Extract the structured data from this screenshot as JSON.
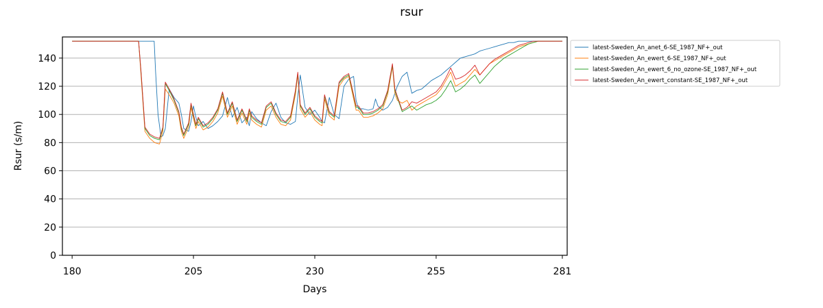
{
  "chart_data": {
    "type": "line",
    "title": "rsur",
    "xlabel": "Days",
    "ylabel": "Rsur (s/m)",
    "xlim": [
      178,
      282
    ],
    "ylim": [
      0,
      155
    ],
    "xticks": [
      180,
      205,
      230,
      255,
      281
    ],
    "yticks": [
      0,
      20,
      40,
      60,
      80,
      100,
      120,
      140
    ],
    "grid": "horizontal",
    "legend_position": "outside-right",
    "series": [
      {
        "name": "latest-Sweden_An_anet_6-SE_1987_NF+_out",
        "color": "#1f77b4",
        "x": [
          180,
          195,
          196.9,
          197.2,
          197.7,
          198.3,
          198.7,
          199.2,
          200,
          201,
          202,
          202.5,
          203,
          204,
          204.5,
          205,
          205.5,
          206,
          207,
          208,
          209,
          210,
          211,
          212,
          213,
          214,
          215,
          216,
          216.5,
          217,
          218,
          219,
          220,
          221,
          222,
          223,
          224,
          225,
          226,
          226.5,
          227,
          228,
          229,
          230,
          231,
          231.5,
          232,
          233,
          234,
          235,
          236,
          237,
          238,
          238.5,
          239,
          240,
          241,
          242,
          242.5,
          243,
          244,
          245,
          246,
          247,
          248,
          249,
          250,
          251,
          252,
          253,
          254,
          255,
          256,
          257,
          258,
          259,
          260,
          261,
          262,
          263,
          264,
          265,
          266,
          267,
          268,
          269,
          270,
          271,
          272,
          273,
          274,
          275,
          276,
          277,
          278,
          279,
          280,
          281
        ],
        "values": [
          152,
          152,
          152,
          130,
          100,
          84,
          85,
          90,
          118,
          112,
          108,
          100,
          90,
          88,
          95,
          106,
          98,
          92,
          95,
          90,
          92,
          95,
          99,
          112,
          98,
          105,
          94,
          98,
          92,
          102,
          97,
          94,
          92,
          102,
          108,
          98,
          94,
          93,
          95,
          113,
          128,
          105,
          100,
          103,
          98,
          95,
          94,
          112,
          100,
          97,
          120,
          125,
          127,
          110,
          104,
          104,
          103,
          104,
          111,
          106,
          103,
          105,
          110,
          120,
          127,
          130,
          115,
          117,
          118,
          121,
          124,
          126,
          128,
          131,
          134,
          137,
          140,
          141,
          142,
          143,
          145,
          146,
          147,
          148,
          149,
          150,
          151,
          151,
          152,
          152,
          152,
          152,
          152,
          152,
          152,
          152,
          152,
          152
        ]
      },
      {
        "name": "latest-Sweden_An_ewert_6-SE_1987_NF+_out",
        "color": "#ff7f0e",
        "x": [
          180,
          193.7,
          194.2,
          195,
          196,
          197,
          198,
          198.7,
          199.2,
          200,
          201,
          202,
          202.5,
          203,
          204,
          204.5,
          205,
          205.5,
          206,
          207,
          208,
          209,
          210,
          211,
          212,
          213,
          214,
          215,
          216,
          216.5,
          217,
          218,
          219,
          220,
          221,
          222,
          223,
          224,
          225,
          226,
          226.5,
          227,
          228,
          229,
          230,
          231,
          231.5,
          232,
          233,
          234,
          235,
          236,
          237,
          238,
          238.5,
          239,
          240,
          241,
          242,
          242.5,
          243,
          244,
          245,
          246,
          246.5,
          247,
          248,
          249,
          250,
          251,
          252,
          253,
          254,
          255,
          256,
          257,
          258,
          259,
          260,
          261,
          262,
          263,
          264,
          265,
          266,
          267,
          268,
          269,
          270,
          271,
          272,
          273,
          274,
          275,
          276,
          277,
          278,
          279,
          280,
          281
        ],
        "values": [
          152,
          152,
          128,
          88,
          83,
          80,
          79,
          88,
          118,
          114,
          108,
          99,
          88,
          83,
          91,
          105,
          97,
          90,
          95,
          89,
          91,
          95,
          101,
          113,
          98,
          106,
          93,
          101,
          93,
          101,
          96,
          93,
          91,
          103,
          106,
          98,
          93,
          92,
          96,
          114,
          128,
          104,
          98,
          102,
          96,
          93,
          92,
          111,
          99,
          96,
          120,
          125,
          127,
          111,
          103,
          103,
          98,
          98,
          99,
          100,
          101,
          104,
          114,
          134,
          115,
          110,
          108,
          110,
          103,
          106,
          108,
          110,
          112,
          114,
          118,
          124,
          130,
          120,
          122,
          124,
          128,
          132,
          128,
          132,
          136,
          138,
          140,
          142,
          144,
          146,
          148,
          149,
          150,
          151,
          152,
          152,
          152,
          152,
          152,
          152
        ]
      },
      {
        "name": "latest-Sweden_An_ewert_6_no_ozone-SE_1987_NF+_out",
        "color": "#2ca02c",
        "x": [
          180,
          193.7,
          194.2,
          195,
          196,
          197,
          198,
          198.7,
          199.2,
          200,
          201,
          202,
          202.5,
          203,
          204,
          204.5,
          205,
          205.5,
          206,
          207,
          208,
          209,
          210,
          211,
          212,
          213,
          214,
          215,
          216,
          216.5,
          217,
          218,
          219,
          220,
          221,
          222,
          223,
          224,
          225,
          226,
          226.5,
          227,
          228,
          229,
          230,
          231,
          231.5,
          232,
          233,
          234,
          235,
          236,
          237,
          238,
          238.5,
          239,
          240,
          241,
          242,
          242.5,
          243,
          244,
          245,
          246,
          246.5,
          247,
          248,
          249,
          250,
          251,
          252,
          253,
          254,
          255,
          256,
          257,
          258,
          259,
          260,
          261,
          262,
          263,
          264,
          265,
          266,
          267,
          268,
          269,
          270,
          271,
          272,
          273,
          274,
          275,
          276,
          277,
          278,
          279,
          280,
          281
        ],
        "values": [
          152,
          152,
          130,
          90,
          85,
          83,
          82,
          90,
          122,
          117,
          110,
          101,
          90,
          85,
          93,
          107,
          99,
          92,
          97,
          91,
          93,
          97,
          103,
          115,
          100,
          108,
          95,
          103,
          95,
          103,
          98,
          95,
          93,
          105,
          108,
          100,
          95,
          94,
          98,
          116,
          129,
          106,
          100,
          104,
          98,
          95,
          94,
          113,
          101,
          98,
          122,
          126,
          128,
          113,
          105,
          105,
          100,
          100,
          101,
          102,
          103,
          106,
          116,
          135,
          117,
          112,
          102,
          104,
          106,
          103,
          105,
          107,
          108,
          110,
          113,
          118,
          124,
          116,
          118,
          121,
          125,
          128,
          122,
          126,
          130,
          134,
          137,
          140,
          142,
          144,
          146,
          148,
          150,
          151,
          152,
          152,
          152,
          152,
          152,
          152
        ]
      },
      {
        "name": "latest-Sweden_An_ewert_constant-SE_1987_NF+_out",
        "color": "#d62728",
        "x": [
          180,
          193.7,
          194.2,
          195,
          196,
          197,
          198,
          198.7,
          199.2,
          200,
          201,
          202,
          202.5,
          203,
          204,
          204.5,
          205,
          205.5,
          206,
          207,
          208,
          209,
          210,
          211,
          212,
          213,
          214,
          215,
          216,
          216.5,
          217,
          218,
          219,
          220,
          221,
          222,
          223,
          224,
          225,
          226,
          226.5,
          227,
          228,
          229,
          230,
          231,
          231.5,
          232,
          233,
          234,
          235,
          236,
          237,
          238,
          238.5,
          239,
          240,
          241,
          242,
          242.5,
          243,
          244,
          245,
          246,
          246.5,
          247,
          248,
          249,
          250,
          251,
          252,
          253,
          254,
          255,
          256,
          257,
          258,
          259,
          260,
          261,
          262,
          263,
          264,
          265,
          266,
          267,
          268,
          269,
          270,
          271,
          272,
          273,
          274,
          275,
          276,
          277,
          278,
          279,
          280,
          281
        ],
        "values": [
          152,
          152,
          131,
          91,
          86,
          84,
          83,
          91,
          123,
          118,
          111,
          102,
          91,
          86,
          94,
          108,
          100,
          93,
          98,
          92,
          94,
          98,
          104,
          116,
          101,
          109,
          96,
          104,
          96,
          104,
          99,
          96,
          94,
          106,
          109,
          101,
          96,
          95,
          99,
          117,
          130,
          107,
          101,
          105,
          99,
          96,
          95,
          114,
          102,
          99,
          123,
          127,
          129,
          114,
          106,
          106,
          101,
          101,
          102,
          103,
          104,
          107,
          117,
          136,
          118,
          113,
          103,
          105,
          109,
          108,
          110,
          112,
          114,
          116,
          120,
          126,
          133,
          125,
          126,
          128,
          131,
          135,
          128,
          132,
          136,
          139,
          141,
          143,
          145,
          147,
          149,
          150,
          151,
          152,
          152,
          152,
          152,
          152,
          152,
          152
        ]
      }
    ]
  }
}
